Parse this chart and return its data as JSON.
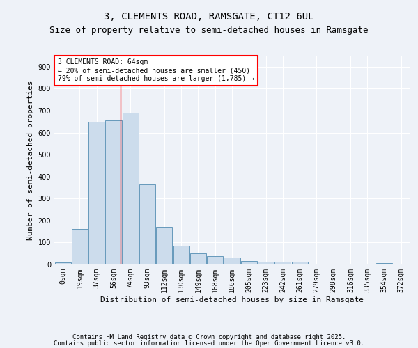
{
  "title1": "3, CLEMENTS ROAD, RAMSGATE, CT12 6UL",
  "title2": "Size of property relative to semi-detached houses in Ramsgate",
  "xlabel": "Distribution of semi-detached houses by size in Ramsgate",
  "ylabel": "Number of semi-detached properties",
  "bar_labels": [
    "0sqm",
    "19sqm",
    "37sqm",
    "56sqm",
    "74sqm",
    "93sqm",
    "112sqm",
    "130sqm",
    "149sqm",
    "168sqm",
    "186sqm",
    "205sqm",
    "223sqm",
    "242sqm",
    "261sqm",
    "279sqm",
    "298sqm",
    "316sqm",
    "335sqm",
    "354sqm",
    "372sqm"
  ],
  "bar_heights": [
    10,
    160,
    650,
    655,
    690,
    365,
    170,
    85,
    50,
    37,
    33,
    15,
    13,
    13,
    12,
    0,
    0,
    0,
    0,
    5,
    0
  ],
  "bar_color": "#ccdcec",
  "bar_edge_color": "#6699bb",
  "background_color": "#eef2f8",
  "grid_color": "#ffffff",
  "red_line_x": 3.42,
  "annotation_line1": "3 CLEMENTS ROAD: 64sqm",
  "annotation_line2": "← 20% of semi-detached houses are smaller (450)",
  "annotation_line3": "79% of semi-detached houses are larger (1,785) →",
  "ylim": [
    0,
    950
  ],
  "yticks": [
    0,
    100,
    200,
    300,
    400,
    500,
    600,
    700,
    800,
    900
  ],
  "footer1": "Contains HM Land Registry data © Crown copyright and database right 2025.",
  "footer2": "Contains public sector information licensed under the Open Government Licence v3.0.",
  "title1_fontsize": 10,
  "title2_fontsize": 9,
  "axis_label_fontsize": 8,
  "tick_fontsize": 7,
  "footer_fontsize": 6.5,
  "annot_fontsize": 7
}
